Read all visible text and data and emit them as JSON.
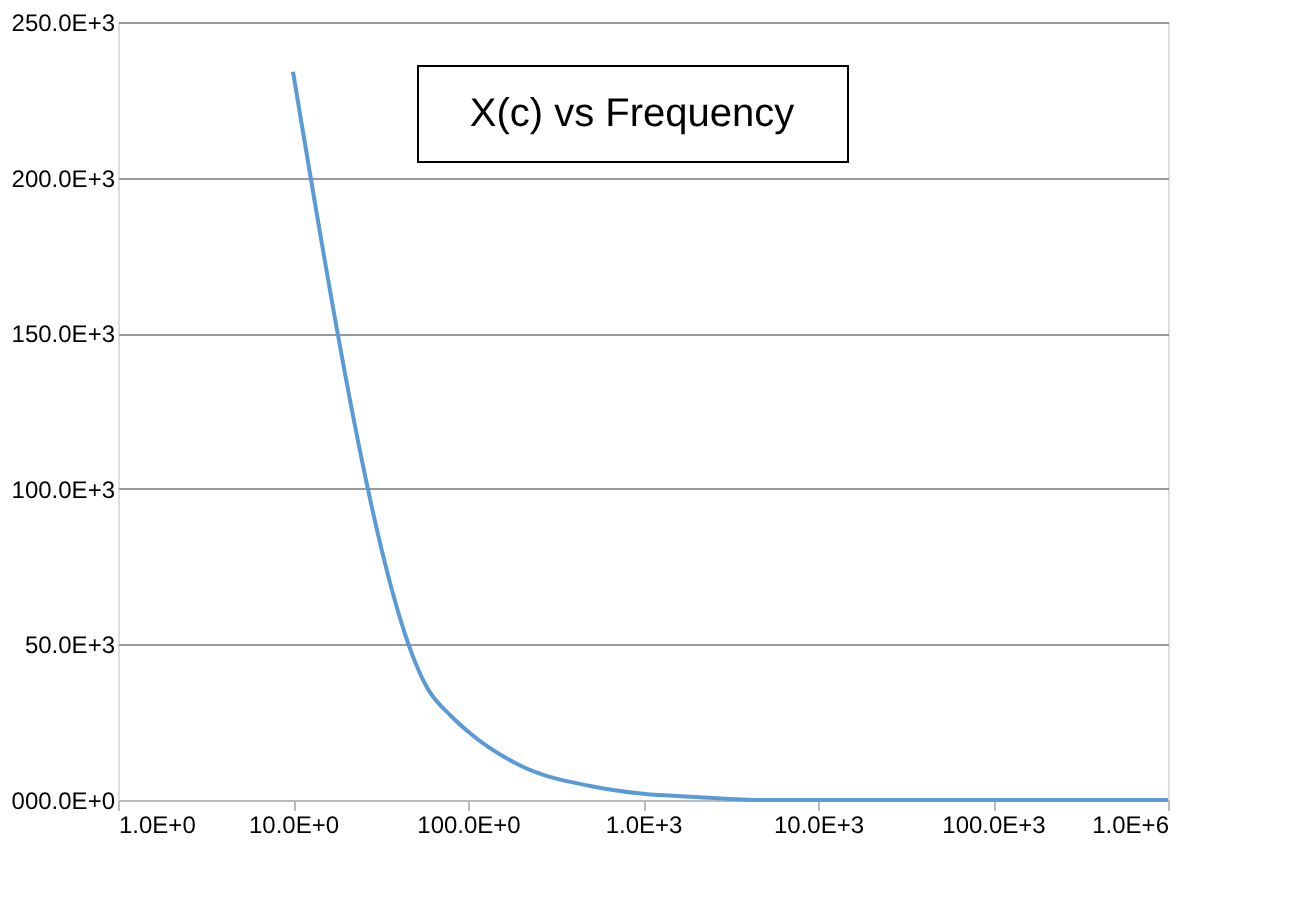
{
  "chart_data": {
    "type": "line",
    "title": "X(c) vs Frequency",
    "x": [
      10,
      60,
      80,
      100,
      200,
      500,
      1000,
      2000,
      5000,
      10000,
      100000,
      1000000
    ],
    "series": [
      {
        "color": "#5b9bd5",
        "values": [
          234000,
          35000,
          27000,
          22000,
          11000,
          4500,
          2000,
          1000,
          0,
          0,
          0,
          0
        ]
      }
    ],
    "log": "x",
    "xlim": [
      1,
      1000000
    ],
    "xticks": [
      {
        "value": 1,
        "label": "1.0E+0"
      },
      {
        "value": 10,
        "label": "10.0E+0"
      },
      {
        "value": 100,
        "label": "100.0E+0"
      },
      {
        "value": 1000,
        "label": "1.0E+3"
      },
      {
        "value": 10000,
        "label": "10.0E+3"
      },
      {
        "value": 100000,
        "label": "100.0E+3"
      },
      {
        "value": 1000000,
        "label": "1.0E+6"
      }
    ],
    "ylim": [
      0,
      250000
    ],
    "yticks": [
      {
        "value": 0,
        "label": "000.0E+0"
      },
      {
        "value": 50000,
        "label": "50.0E+3"
      },
      {
        "value": 100000,
        "label": "100.0E+3"
      },
      {
        "value": 150000,
        "label": "150.0E+3"
      },
      {
        "value": 200000,
        "label": "200.0E+3"
      },
      {
        "value": 250000,
        "label": "250.0E+3"
      }
    ],
    "grid": "y",
    "marker": "none",
    "line_style": "solid"
  }
}
